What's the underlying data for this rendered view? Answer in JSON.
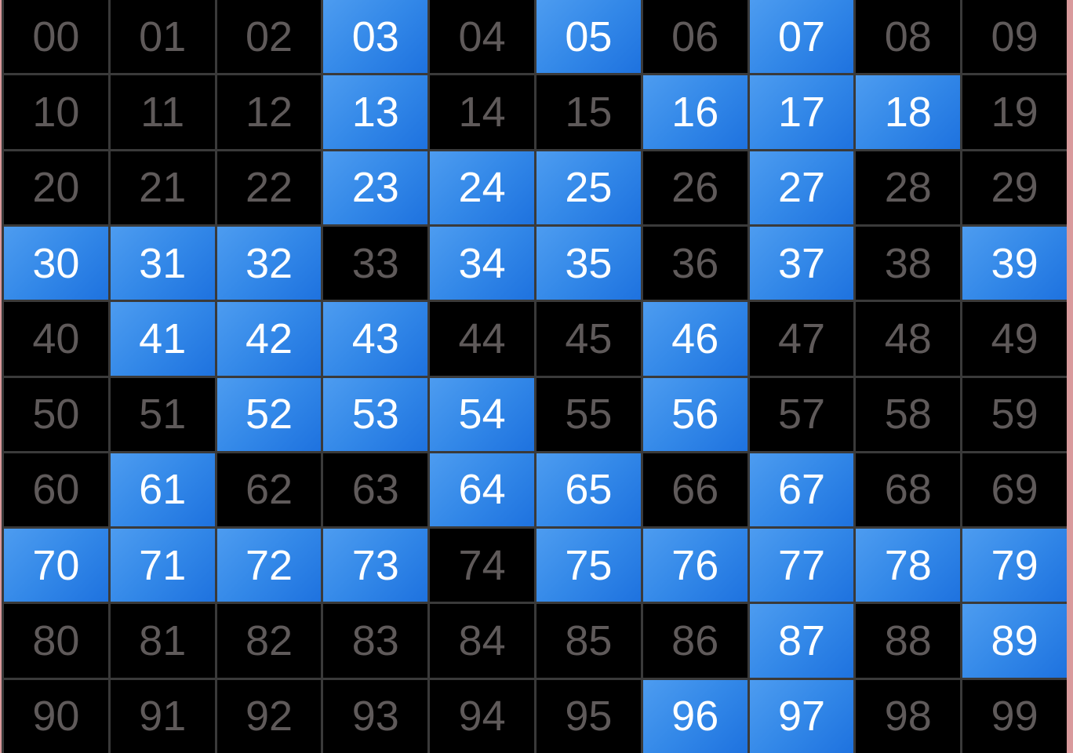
{
  "colors": {
    "selected_start": "#4d9cf0",
    "selected_end": "#1e72df",
    "unselected_bg": "#000000",
    "unselected_text": "#5f5a5a",
    "selected_text": "#ffffff",
    "grid_line": "#3a3a3a"
  },
  "cells": [
    {
      "label": "00",
      "selected": false
    },
    {
      "label": "01",
      "selected": false
    },
    {
      "label": "02",
      "selected": false
    },
    {
      "label": "03",
      "selected": true
    },
    {
      "label": "04",
      "selected": false
    },
    {
      "label": "05",
      "selected": true
    },
    {
      "label": "06",
      "selected": false
    },
    {
      "label": "07",
      "selected": true
    },
    {
      "label": "08",
      "selected": false
    },
    {
      "label": "09",
      "selected": false
    },
    {
      "label": "10",
      "selected": false
    },
    {
      "label": "11",
      "selected": false
    },
    {
      "label": "12",
      "selected": false
    },
    {
      "label": "13",
      "selected": true
    },
    {
      "label": "14",
      "selected": false
    },
    {
      "label": "15",
      "selected": false
    },
    {
      "label": "16",
      "selected": true
    },
    {
      "label": "17",
      "selected": true
    },
    {
      "label": "18",
      "selected": true
    },
    {
      "label": "19",
      "selected": false
    },
    {
      "label": "20",
      "selected": false
    },
    {
      "label": "21",
      "selected": false
    },
    {
      "label": "22",
      "selected": false
    },
    {
      "label": "23",
      "selected": true
    },
    {
      "label": "24",
      "selected": true
    },
    {
      "label": "25",
      "selected": true
    },
    {
      "label": "26",
      "selected": false
    },
    {
      "label": "27",
      "selected": true
    },
    {
      "label": "28",
      "selected": false
    },
    {
      "label": "29",
      "selected": false
    },
    {
      "label": "30",
      "selected": true
    },
    {
      "label": "31",
      "selected": true
    },
    {
      "label": "32",
      "selected": true
    },
    {
      "label": "33",
      "selected": false
    },
    {
      "label": "34",
      "selected": true
    },
    {
      "label": "35",
      "selected": true
    },
    {
      "label": "36",
      "selected": false
    },
    {
      "label": "37",
      "selected": true
    },
    {
      "label": "38",
      "selected": false
    },
    {
      "label": "39",
      "selected": true
    },
    {
      "label": "40",
      "selected": false
    },
    {
      "label": "41",
      "selected": true
    },
    {
      "label": "42",
      "selected": true
    },
    {
      "label": "43",
      "selected": true
    },
    {
      "label": "44",
      "selected": false
    },
    {
      "label": "45",
      "selected": false
    },
    {
      "label": "46",
      "selected": true
    },
    {
      "label": "47",
      "selected": false
    },
    {
      "label": "48",
      "selected": false
    },
    {
      "label": "49",
      "selected": false
    },
    {
      "label": "50",
      "selected": false
    },
    {
      "label": "51",
      "selected": false
    },
    {
      "label": "52",
      "selected": true
    },
    {
      "label": "53",
      "selected": true
    },
    {
      "label": "54",
      "selected": true
    },
    {
      "label": "55",
      "selected": false
    },
    {
      "label": "56",
      "selected": true
    },
    {
      "label": "57",
      "selected": false
    },
    {
      "label": "58",
      "selected": false
    },
    {
      "label": "59",
      "selected": false
    },
    {
      "label": "60",
      "selected": false
    },
    {
      "label": "61",
      "selected": true
    },
    {
      "label": "62",
      "selected": false
    },
    {
      "label": "63",
      "selected": false
    },
    {
      "label": "64",
      "selected": true
    },
    {
      "label": "65",
      "selected": true
    },
    {
      "label": "66",
      "selected": false
    },
    {
      "label": "67",
      "selected": true
    },
    {
      "label": "68",
      "selected": false
    },
    {
      "label": "69",
      "selected": false
    },
    {
      "label": "70",
      "selected": true
    },
    {
      "label": "71",
      "selected": true
    },
    {
      "label": "72",
      "selected": true
    },
    {
      "label": "73",
      "selected": true
    },
    {
      "label": "74",
      "selected": false
    },
    {
      "label": "75",
      "selected": true
    },
    {
      "label": "76",
      "selected": true
    },
    {
      "label": "77",
      "selected": true
    },
    {
      "label": "78",
      "selected": true
    },
    {
      "label": "79",
      "selected": true
    },
    {
      "label": "80",
      "selected": false
    },
    {
      "label": "81",
      "selected": false
    },
    {
      "label": "82",
      "selected": false
    },
    {
      "label": "83",
      "selected": false
    },
    {
      "label": "84",
      "selected": false
    },
    {
      "label": "85",
      "selected": false
    },
    {
      "label": "86",
      "selected": false
    },
    {
      "label": "87",
      "selected": true
    },
    {
      "label": "88",
      "selected": false
    },
    {
      "label": "89",
      "selected": true
    },
    {
      "label": "90",
      "selected": false
    },
    {
      "label": "91",
      "selected": false
    },
    {
      "label": "92",
      "selected": false
    },
    {
      "label": "93",
      "selected": false
    },
    {
      "label": "94",
      "selected": false
    },
    {
      "label": "95",
      "selected": false
    },
    {
      "label": "96",
      "selected": true
    },
    {
      "label": "97",
      "selected": true
    },
    {
      "label": "98",
      "selected": false
    },
    {
      "label": "99",
      "selected": false
    }
  ]
}
